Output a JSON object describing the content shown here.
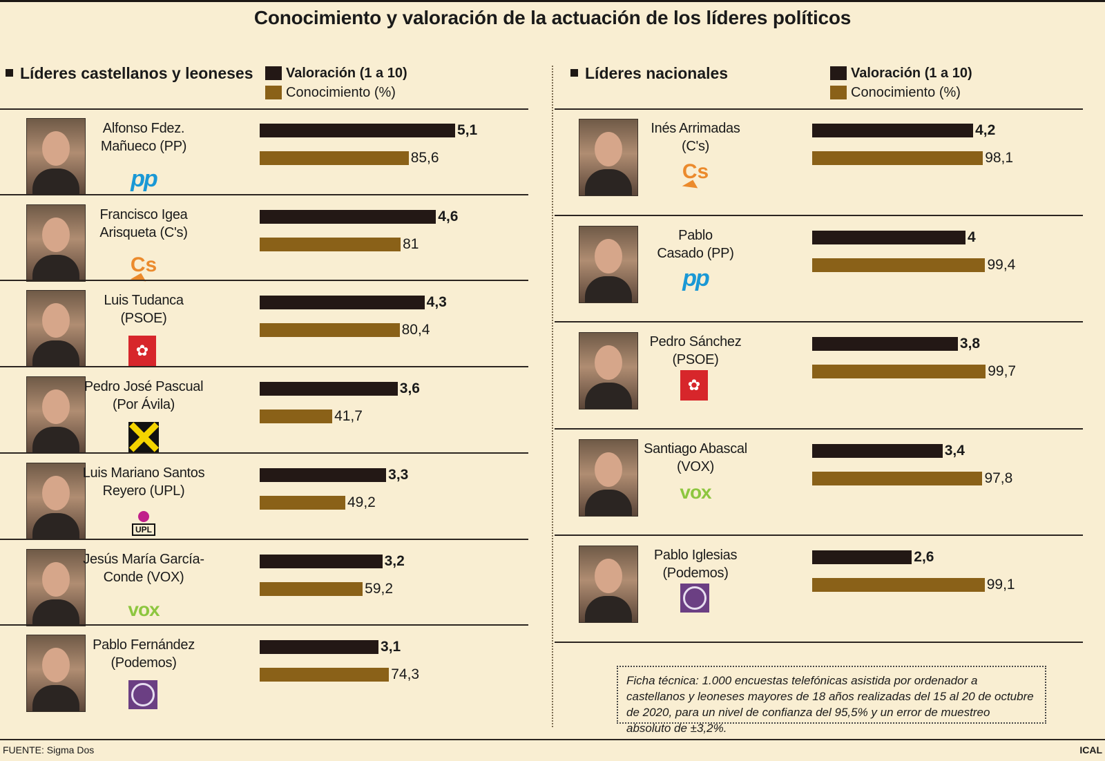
{
  "title": "Conocimiento y valoración de la actuación de los líderes políticos",
  "colors": {
    "valoracion": "#231815",
    "conocimiento": "#8a6118",
    "background": "#f9eed2"
  },
  "legend": {
    "valoracion": "Valoración (1 a 10)",
    "conocimiento": "Conocimiento (%)"
  },
  "chart_data": [
    {
      "type": "bar",
      "title": "Líderes castellanos y leoneses",
      "series_names": [
        "Valoración (1 a 10)",
        "Conocimiento (%)"
      ],
      "leaders": [
        {
          "name": "Alfonso Fdez. Mañueco (PP)",
          "line1": "Alfonso Fdez.",
          "line2": "Mañueco (PP)",
          "party": "PP",
          "logo": "pp-logo",
          "valoracion": 5.1,
          "valoracion_label": "5,1",
          "conocimiento": 85.6,
          "conocimiento_label": "85,6"
        },
        {
          "name": "Francisco Igea Arisqueta (C's)",
          "line1": "Francisco Igea",
          "line2": "Arisqueta (C's)",
          "party": "Cs",
          "logo": "cs-logo",
          "valoracion": 4.6,
          "valoracion_label": "4,6",
          "conocimiento": 81,
          "conocimiento_label": "81"
        },
        {
          "name": "Luis Tudanca (PSOE)",
          "line1": "Luis Tudanca",
          "line2": "(PSOE)",
          "party": "PSOE",
          "logo": "psoe-logo",
          "valoracion": 4.3,
          "valoracion_label": "4,3",
          "conocimiento": 80.4,
          "conocimiento_label": "80,4"
        },
        {
          "name": "Pedro José Pascual (Por Ávila)",
          "line1": "Pedro José Pascual",
          "line2": "(Por Ávila)",
          "party": "XAV",
          "logo": "por-avila-logo",
          "valoracion": 3.6,
          "valoracion_label": "3,6",
          "conocimiento": 41.7,
          "conocimiento_label": "41,7"
        },
        {
          "name": "Luis Mariano Santos Reyero (UPL)",
          "line1": "Luis Mariano Santos",
          "line2": "Reyero (UPL)",
          "party": "UPL",
          "logo": "upl-logo",
          "valoracion": 3.3,
          "valoracion_label": "3,3",
          "conocimiento": 49.2,
          "conocimiento_label": "49,2"
        },
        {
          "name": "Jesús María García-Conde (VOX)",
          "line1": "Jesús María García-",
          "line2": "Conde (VOX)",
          "party": "VOX",
          "logo": "vox-logo",
          "valoracion": 3.2,
          "valoracion_label": "3,2",
          "conocimiento": 59.2,
          "conocimiento_label": "59,2"
        },
        {
          "name": "Pablo Fernández (Podemos)",
          "line1": "Pablo Fernández",
          "line2": "(Podemos)",
          "party": "Podemos",
          "logo": "podemos-logo",
          "valoracion": 3.1,
          "valoracion_label": "3,1",
          "conocimiento": 74.3,
          "conocimiento_label": "74,3"
        }
      ]
    },
    {
      "type": "bar",
      "title": "Líderes nacionales",
      "series_names": [
        "Valoración (1 a 10)",
        "Conocimiento (%)"
      ],
      "leaders": [
        {
          "name": "Inés Arrimadas (C's)",
          "line1": "Inés Arrimadas",
          "line2": "(C's)",
          "party": "Cs",
          "logo": "cs-logo",
          "valoracion": 4.2,
          "valoracion_label": "4,2",
          "conocimiento": 98.1,
          "conocimiento_label": "98,1"
        },
        {
          "name": "Pablo Casado (PP)",
          "line1": "Pablo",
          "line2": "Casado (PP)",
          "party": "PP",
          "logo": "pp-logo",
          "valoracion": 4,
          "valoracion_label": "4",
          "conocimiento": 99.4,
          "conocimiento_label": "99,4"
        },
        {
          "name": "Pedro Sánchez (PSOE)",
          "line1": "Pedro Sánchez",
          "line2": "(PSOE)",
          "party": "PSOE",
          "logo": "psoe-logo",
          "valoracion": 3.8,
          "valoracion_label": "3,8",
          "conocimiento": 99.7,
          "conocimiento_label": "99,7"
        },
        {
          "name": "Santiago Abascal (VOX)",
          "line1": "Santiago Abascal",
          "line2": "(VOX)",
          "party": "VOX",
          "logo": "vox-logo",
          "valoracion": 3.4,
          "valoracion_label": "3,4",
          "conocimiento": 97.8,
          "conocimiento_label": "97,8"
        },
        {
          "name": "Pablo Iglesias (Podemos)",
          "line1": "Pablo Iglesias",
          "line2": "(Podemos)",
          "party": "Podemos",
          "logo": "podemos-logo",
          "valoracion": 2.6,
          "valoracion_label": "2,6",
          "conocimiento": 99.1,
          "conocimiento_label": "99,1"
        }
      ]
    }
  ],
  "logo_text": {
    "pp": "pp",
    "cs": "Cs",
    "psoe": "✿",
    "vox": "vox",
    "upl": "UPL"
  },
  "ficha": "Ficha técnica: 1.000 encuestas telefónicas asistida por ordenador a castellanos y leoneses mayores de 18 años realizadas del 15 al 20 de octubre de 2020, para un nivel de confianza del 95,5% y un error de muestreo absoluto de ±3,2%.",
  "source": "FUENTE: Sigma Dos",
  "agency": "ICAL"
}
